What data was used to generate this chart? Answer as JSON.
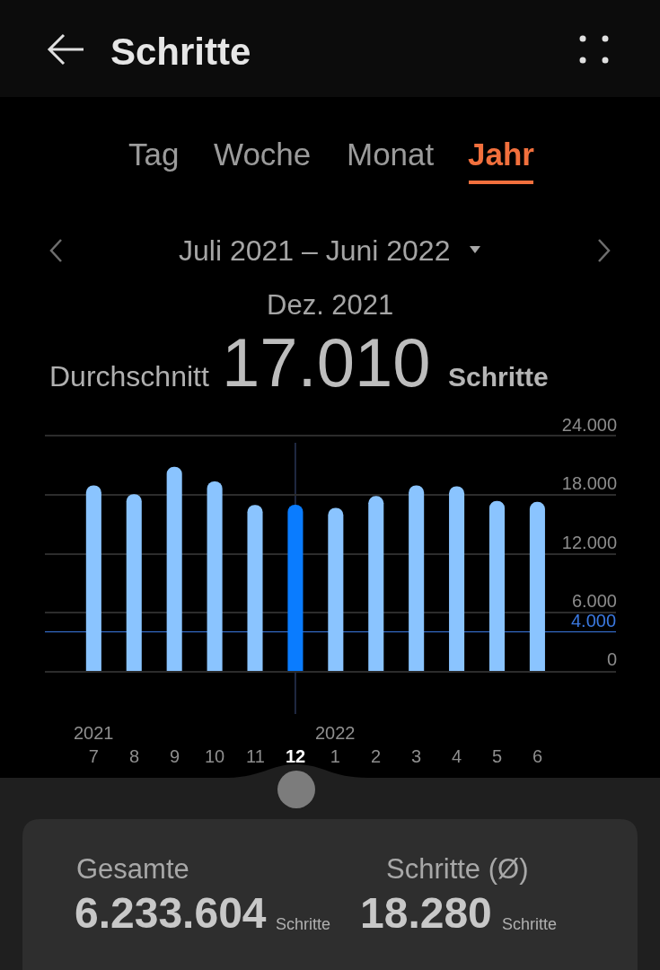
{
  "chart_data": {
    "type": "bar",
    "title": "Schritte",
    "subtitle": "Juli 2021 – Juni 2022",
    "categories": [
      "2021\n7",
      "8",
      "9",
      "10",
      "11",
      "12",
      "2022\n1",
      "2",
      "3",
      "4",
      "5",
      "6"
    ],
    "values": [
      19000,
      18100,
      20900,
      19400,
      17000,
      17010,
      16700,
      17900,
      19000,
      18900,
      17400,
      17300
    ],
    "colors": [
      "#8ac4ff",
      "#8ac4ff",
      "#8ac4ff",
      "#8ac4ff",
      "#8ac4ff",
      "#0a7cff",
      "#8ac4ff",
      "#8ac4ff",
      "#8ac4ff",
      "#8ac4ff",
      "#8ac4ff",
      "#8ac4ff"
    ],
    "ylim": [
      0,
      24000
    ],
    "yticks": [
      0,
      {
        "value": 6000,
        "label": "6.000"
      },
      {
        "value": 12000,
        "label": "12.000"
      },
      {
        "value": 18000,
        "label": "18.000"
      },
      {
        "value": 24000,
        "label": "24.000"
      }
    ],
    "grid": "y",
    "ref_lines": [
      {
        "axis": "y",
        "value": 4000,
        "label": "4.000",
        "color": "#3a78e0"
      },
      {
        "axis": "x",
        "value": "12",
        "color": "#2a3656"
      }
    ],
    "annotations": [
      "Tag",
      "Woche",
      "Monat",
      "Jahr",
      "Dez. 2021",
      "Durchschnitt",
      "17.010",
      "Schritte",
      "Gesamte",
      "6.233.604",
      "Schritte",
      "Schritte (Ø)",
      "18.280",
      "Schritte"
    ]
  }
}
